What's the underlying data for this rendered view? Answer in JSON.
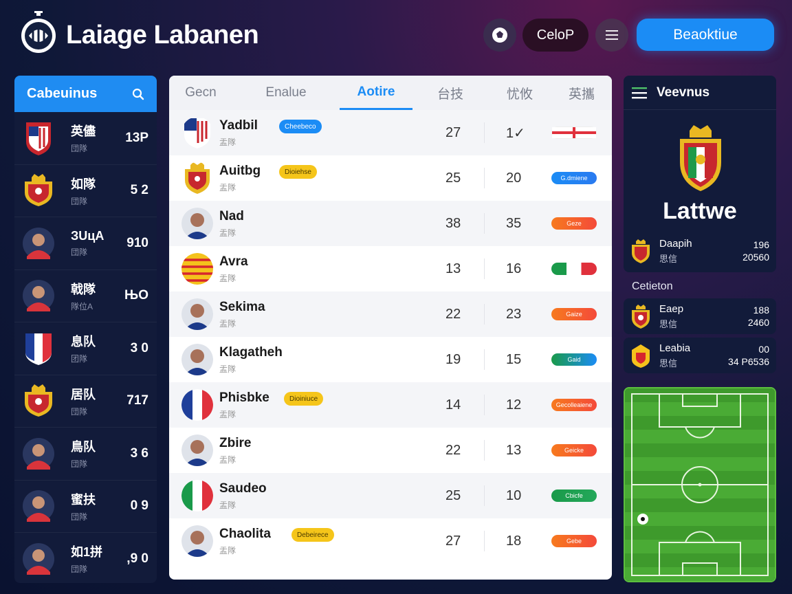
{
  "header": {
    "app_title": "Laiage Labanen",
    "pill_label": "CeloP",
    "primary_label": "Beaoktiue"
  },
  "sidebar": {
    "title": "Cabeuinus",
    "items": [
      {
        "name": "英儘",
        "sub": "団隊",
        "value": "13P",
        "crest": "atletico"
      },
      {
        "name": "如隊",
        "sub": "団隊",
        "value": "5 2",
        "crest": "spain"
      },
      {
        "name": "ЗUцA",
        "sub": "団隊",
        "value": "910",
        "crest": "player"
      },
      {
        "name": "戟隊",
        "sub": "隊位A",
        "value": "ЊO",
        "crest": "player"
      },
      {
        "name": "息队",
        "sub": "团隊",
        "value": "3 0",
        "crest": "france"
      },
      {
        "name": "居队",
        "sub": "団隊",
        "value": "717",
        "crest": "spain"
      },
      {
        "name": "鳥队",
        "sub": "団隊",
        "value": "3 6",
        "crest": "player"
      },
      {
        "name": "蜜扶",
        "sub": "団隊",
        "value": "0 9",
        "crest": "player"
      },
      {
        "name": "如1拼",
        "sub": "団隊",
        "value": ",9 0",
        "crest": "player"
      }
    ]
  },
  "table": {
    "tabs": [
      {
        "label": "Gecn",
        "active": false
      },
      {
        "label": "Enalue",
        "active": false
      },
      {
        "label": "Aotire",
        "active": true
      },
      {
        "label": "台技",
        "active": false
      },
      {
        "label": "忧攸",
        "active": false
      },
      {
        "label": "英攜",
        "active": false
      }
    ],
    "rows": [
      {
        "name": "Yadbil",
        "sub": "盂隊",
        "badge": "Cheebeco",
        "badge_color": "blue",
        "c1": "27",
        "c2": "1✓",
        "bar": "",
        "bar_style": "flag-en",
        "avatar": "usa"
      },
      {
        "name": "Auitbg",
        "sub": "盂隊",
        "badge": "Dioiehse",
        "badge_color": "yellow",
        "c1": "25",
        "c2": "20",
        "bar": "G.dmiene",
        "bar_style": "blue",
        "avatar": "spain"
      },
      {
        "name": "Nad",
        "sub": "盂隊",
        "badge": "",
        "badge_color": "",
        "c1": "38",
        "c2": "35",
        "bar": "Geze",
        "bar_style": "orange",
        "avatar": "player"
      },
      {
        "name": "Avra",
        "sub": "盂隊",
        "badge": "",
        "badge_color": "",
        "c1": "13",
        "c2": "16",
        "bar": "",
        "bar_style": "flag-it",
        "avatar": "catalan"
      },
      {
        "name": "Sekima",
        "sub": "盂隊",
        "badge": "",
        "badge_color": "",
        "c1": "22",
        "c2": "23",
        "bar": "Gaize",
        "bar_style": "orange",
        "avatar": "player"
      },
      {
        "name": "Klagatheh",
        "sub": "盂隊",
        "badge": "",
        "badge_color": "",
        "c1": "19",
        "c2": "15",
        "bar": "Gaid",
        "bar_style": "green",
        "avatar": "player"
      },
      {
        "name": "Phisbke",
        "sub": "盂隊",
        "badge": "Dioiniuce",
        "badge_color": "yellow",
        "c1": "14",
        "c2": "12",
        "bar": "Gecolleaiene",
        "bar_style": "orange",
        "avatar": "france"
      },
      {
        "name": "Zbire",
        "sub": "盂隊",
        "badge": "",
        "badge_color": "",
        "c1": "22",
        "c2": "13",
        "bar": "Geicke",
        "bar_style": "orange",
        "avatar": "player"
      },
      {
        "name": "Saudeo",
        "sub": "盂隊",
        "badge": "",
        "badge_color": "",
        "c1": "25",
        "c2": "10",
        "bar": "Cbicfe",
        "bar_style": "green2",
        "avatar": "italy"
      },
      {
        "name": "Chaolita",
        "sub": "盂隊",
        "badge": "Debeirece",
        "badge_color": "yellow",
        "c1": "27",
        "c2": "18",
        "bar": "Gebe",
        "bar_style": "orange",
        "avatar": "player"
      }
    ]
  },
  "right": {
    "title": "Veevnus",
    "big_label": "Lattwe",
    "featured": {
      "name": "Daapih",
      "sub": "思信",
      "v1": "196",
      "v2": "20560"
    },
    "section_label": "Cetieton",
    "cards": [
      {
        "name": "Eaep",
        "sub": "思信",
        "v1": "188",
        "v2": "2460"
      },
      {
        "name": "Leabia",
        "sub": "思信",
        "v1": "00",
        "v2": "34 P6536"
      }
    ]
  }
}
